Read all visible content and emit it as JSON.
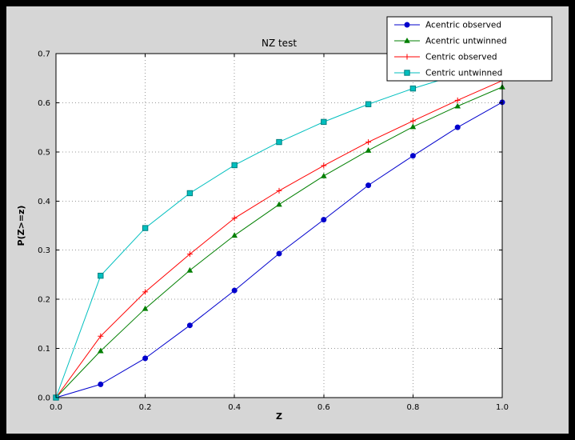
{
  "figure": {
    "outer_background": "#000000",
    "background": "#d6d6d6",
    "plot_background": "#ffffff",
    "grid_color": "#999999",
    "axis_color": "#000000",
    "legend_background": "#ffffff",
    "legend_border": "#000000"
  },
  "chart_data": {
    "type": "line",
    "title": "NZ test",
    "xlabel": "Z",
    "ylabel": "P(Z>=z)",
    "xlim": [
      0.0,
      1.0
    ],
    "ylim": [
      0.0,
      0.7
    ],
    "xticks": [
      0.0,
      0.2,
      0.4,
      0.6,
      0.8,
      1.0
    ],
    "xtick_labels": [
      "0.0",
      "0.2",
      "0.4",
      "0.6",
      "0.8",
      "1.0"
    ],
    "yticks": [
      0.0,
      0.1,
      0.2,
      0.3,
      0.4,
      0.5,
      0.6,
      0.7
    ],
    "ytick_labels": [
      "0.0",
      "0.1",
      "0.2",
      "0.3",
      "0.4",
      "0.5",
      "0.6",
      "0.7"
    ],
    "grid": true,
    "legend_position": "top-right",
    "x": [
      0.0,
      0.1,
      0.2,
      0.3,
      0.4,
      0.5,
      0.6,
      0.7,
      0.8,
      0.9,
      1.0
    ],
    "series": [
      {
        "name": "Acentric observed",
        "color": "#0000cd",
        "marker": "circle",
        "values": [
          0.0,
          0.027,
          0.08,
          0.147,
          0.218,
          0.293,
          0.362,
          0.432,
          0.492,
          0.55,
          0.601
        ]
      },
      {
        "name": "Acentric untwinned",
        "color": "#007f00",
        "marker": "triangle",
        "values": [
          0.0,
          0.095,
          0.181,
          0.259,
          0.33,
          0.393,
          0.451,
          0.503,
          0.551,
          0.593,
          0.632
        ]
      },
      {
        "name": "Centric observed",
        "color": "#ff0000",
        "marker": "plus",
        "values": [
          0.0,
          0.125,
          0.215,
          0.292,
          0.365,
          0.421,
          0.472,
          0.52,
          0.563,
          0.605,
          0.645
        ]
      },
      {
        "name": "Centric untwinned",
        "color": "#00bfbf",
        "marker": "square",
        "marker_edge": "#007f7f",
        "values": [
          0.0,
          0.248,
          0.345,
          0.416,
          0.473,
          0.52,
          0.561,
          0.597,
          0.629,
          0.657,
          0.683
        ]
      }
    ]
  }
}
